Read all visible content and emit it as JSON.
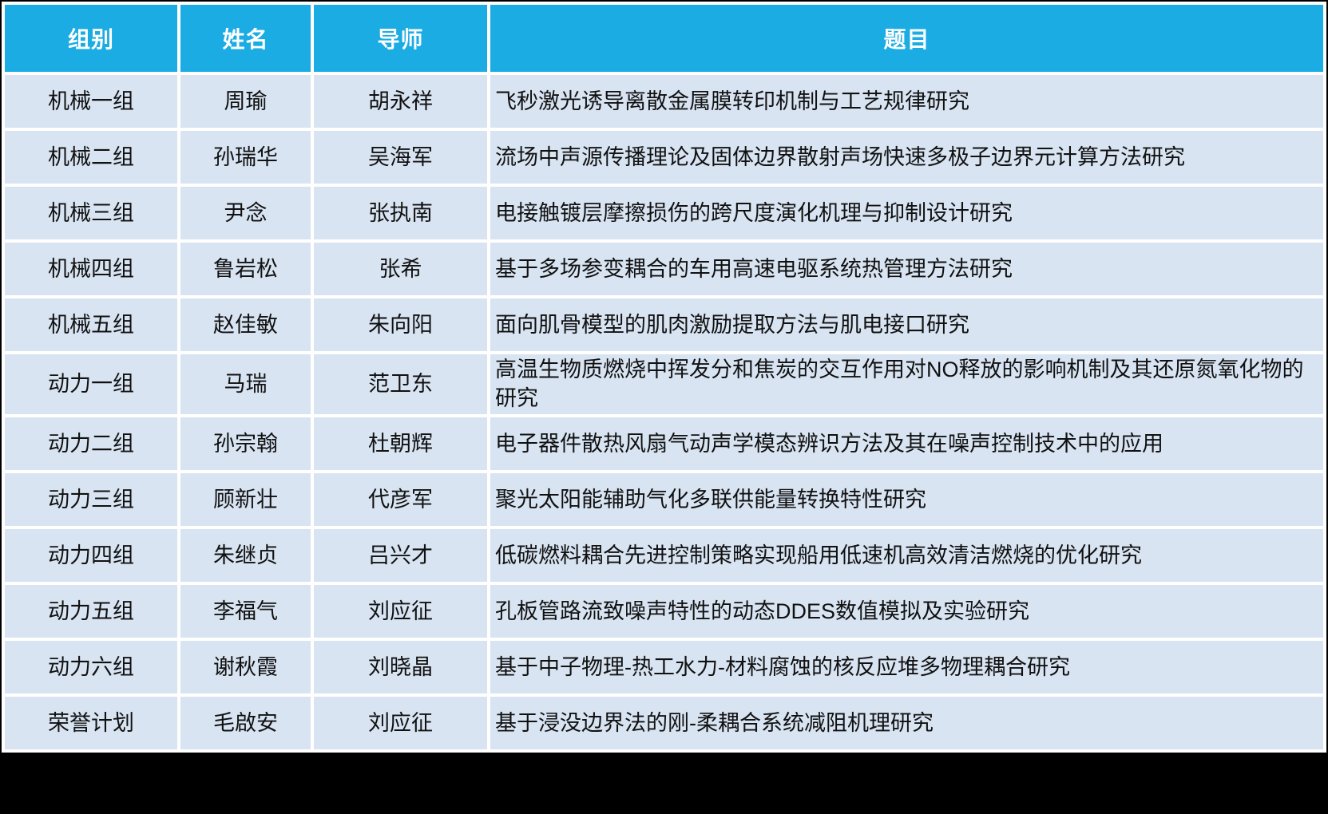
{
  "table": {
    "columns": [
      {
        "key": "group",
        "label": "组别"
      },
      {
        "key": "name",
        "label": "姓名"
      },
      {
        "key": "advisor",
        "label": "导师"
      },
      {
        "key": "title",
        "label": "题目"
      }
    ],
    "rows": [
      {
        "group": "机械一组",
        "name": "周瑜",
        "advisor": "胡永祥",
        "title": "飞秒激光诱导离散金属膜转印机制与工艺规律研究"
      },
      {
        "group": "机械二组",
        "name": "孙瑞华",
        "advisor": "吴海军",
        "title": "流场中声源传播理论及固体边界散射声场快速多极子边界元计算方法研究"
      },
      {
        "group": "机械三组",
        "name": "尹念",
        "advisor": "张执南",
        "title": "电接触镀层摩擦损伤的跨尺度演化机理与抑制设计研究"
      },
      {
        "group": "机械四组",
        "name": "鲁岩松",
        "advisor": "张希",
        "title": "基于多场参变耦合的车用高速电驱系统热管理方法研究"
      },
      {
        "group": "机械五组",
        "name": "赵佳敏",
        "advisor": "朱向阳",
        "title": "面向肌骨模型的肌肉激励提取方法与肌电接口研究"
      },
      {
        "group": "动力一组",
        "name": "马瑞",
        "advisor": "范卫东",
        "title": "高温生物质燃烧中挥发分和焦炭的交互作用对NO释放的影响机制及其还原氮氧化物的研究"
      },
      {
        "group": "动力二组",
        "name": "孙宗翰",
        "advisor": "杜朝辉",
        "title": "电子器件散热风扇气动声学模态辨识方法及其在噪声控制技术中的应用"
      },
      {
        "group": "动力三组",
        "name": "顾新壮",
        "advisor": "代彦军",
        "title": "聚光太阳能辅助气化多联供能量转换特性研究"
      },
      {
        "group": "动力四组",
        "name": "朱继贞",
        "advisor": "吕兴才",
        "title": "低碳燃料耦合先进控制策略实现船用低速机高效清洁燃烧的优化研究"
      },
      {
        "group": "动力五组",
        "name": "李福气",
        "advisor": "刘应征",
        "title": "孔板管路流致噪声特性的动态DDES数值模拟及实验研究"
      },
      {
        "group": "动力六组",
        "name": "谢秋霞",
        "advisor": "刘晓晶",
        "title": "基于中子物理-热工水力-材料腐蚀的核反应堆多物理耦合研究"
      },
      {
        "group": "荣誉计划",
        "name": "毛啟安",
        "advisor": "刘应征",
        "title": "基于浸没边界法的刚-柔耦合系统减阻机理研究"
      }
    ]
  },
  "colors": {
    "header_bg": "#1BACE4",
    "header_text": "#FFFFFF",
    "row_bg": "#D8E4F2",
    "gridline": "#FFFFFF",
    "body_text": "#111111",
    "bottom_band": "#000000"
  }
}
